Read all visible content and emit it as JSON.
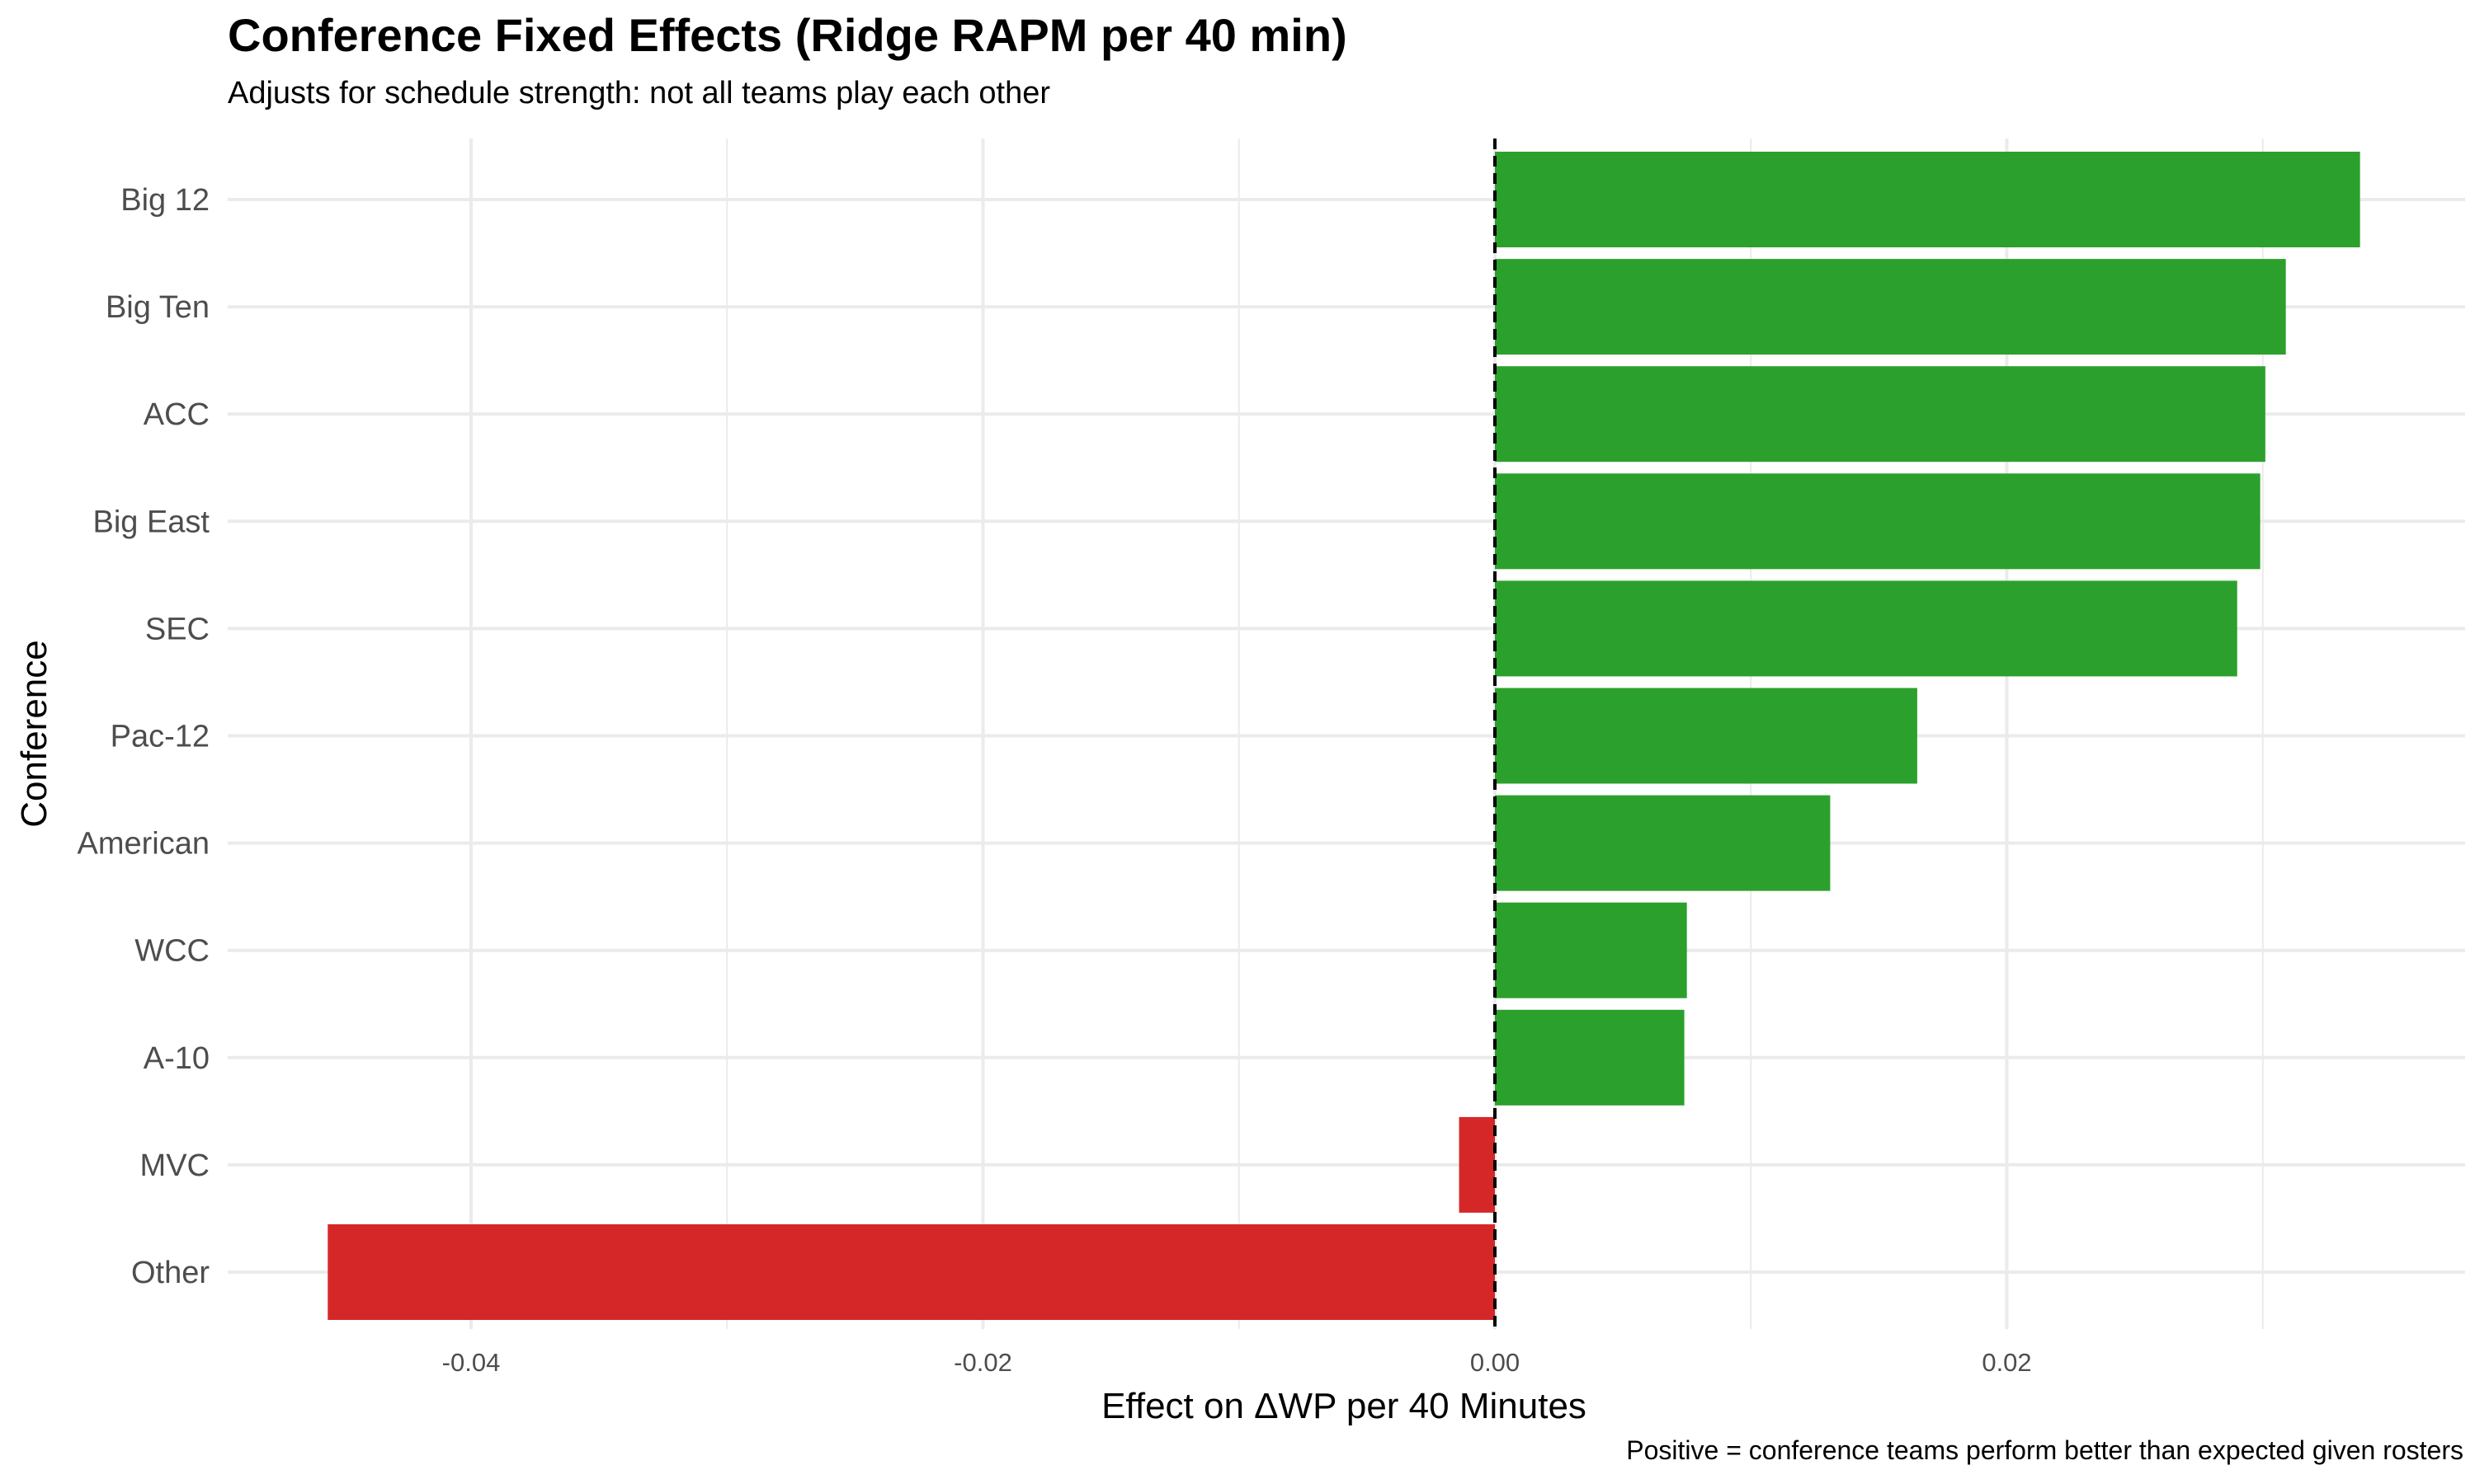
{
  "chart_data": {
    "type": "bar",
    "orientation": "horizontal",
    "title": "Conference Fixed Effects (Ridge RAPM per 40 min)",
    "subtitle": "Adjusts for schedule strength: not all teams play each other",
    "caption": "Positive = conference teams perform better than expected given rosters",
    "xlabel": "Effect on ΔWP per 40 Minutes",
    "ylabel": "Conference",
    "categories": [
      "Big 12",
      "Big Ten",
      "ACC",
      "Big East",
      "SEC",
      "Pac-12",
      "American",
      "WCC",
      "A-10",
      "MVC",
      "Other"
    ],
    "values": [
      0.0338,
      0.0309,
      0.0301,
      0.0299,
      0.029,
      0.0165,
      0.0131,
      0.0075,
      0.0074,
      -0.0014,
      -0.0456
    ],
    "xlim": [
      -0.05,
      0.0375
    ],
    "xticks": [
      -0.04,
      -0.02,
      0.0,
      0.02
    ],
    "xtick_labels": [
      "-0.04",
      "-0.02",
      "0.00",
      "0.02"
    ],
    "reference_line": 0,
    "grid": true,
    "colors": {
      "positive": "#2ca02c",
      "negative": "#d62728",
      "grid": "#ebebeb",
      "reference": "#000000"
    }
  }
}
